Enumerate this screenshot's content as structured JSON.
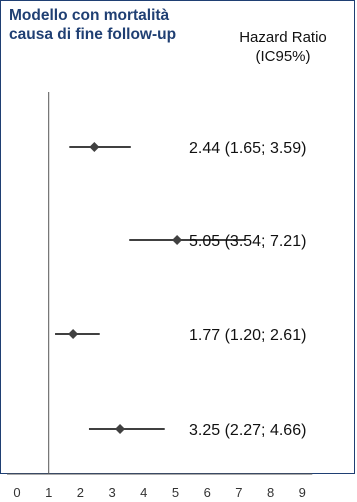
{
  "title_line1": "Modello con mortalità",
  "title_line2": "causa di fine follow-up",
  "header_line1": "Hazard Ratio",
  "header_line2": "(IC95%)",
  "colors": {
    "title": "#1f3f73",
    "frame": "#1f3f73",
    "marker": "#404040",
    "axis": "#555555"
  },
  "chart_data": {
    "type": "forest",
    "title": "Modello con mortalità causa di fine follow-up",
    "xlabel": "",
    "ylabel": "",
    "xlim": [
      0,
      9
    ],
    "xticks": [
      0,
      1,
      2,
      3,
      4,
      5,
      6,
      7,
      8,
      9
    ],
    "reference_line": 1,
    "rows": [
      {
        "hr": 2.44,
        "lo": 1.65,
        "hi": 3.59,
        "label": "2.44 (1.65; 3.59)"
      },
      {
        "hr": 5.05,
        "lo": 3.54,
        "hi": 7.21,
        "label": "5.05 (3.54; 7.21)"
      },
      {
        "hr": 1.77,
        "lo": 1.2,
        "hi": 2.61,
        "label": "1.77 (1.20; 2.61)"
      },
      {
        "hr": 3.25,
        "lo": 2.27,
        "hi": 4.66,
        "label": "3.25 (2.27; 4.66)"
      }
    ]
  }
}
